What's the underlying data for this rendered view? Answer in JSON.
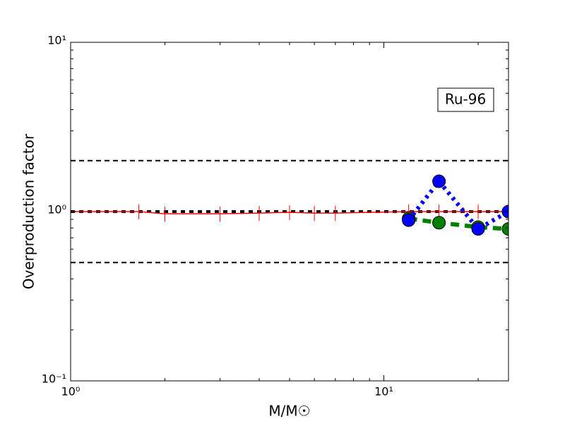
{
  "chart_data": {
    "type": "line",
    "xlabel": "M/M☉",
    "ylabel": "Overproduction factor",
    "annotation": "Ru-96",
    "xscale": "log",
    "yscale": "log",
    "xlim": [
      1,
      25
    ],
    "ylim": [
      0.1,
      10
    ],
    "xticks": [
      {
        "value": 1,
        "label": "10⁰"
      },
      {
        "value": 10,
        "label": "10¹"
      }
    ],
    "yticks": [
      {
        "value": 0.1,
        "label": "10⁻¹"
      },
      {
        "value": 1,
        "label": "10⁰"
      },
      {
        "value": 10,
        "label": "10¹"
      }
    ],
    "xminorticks": [
      2,
      3,
      4,
      5,
      6,
      7,
      8,
      9,
      20
    ],
    "yminorticks": [
      0.2,
      0.3,
      0.4,
      0.5,
      0.6,
      0.7,
      0.8,
      0.9,
      2,
      3,
      4,
      5,
      6,
      7,
      8,
      9
    ],
    "hlines": [
      {
        "value": 2,
        "color": "#000000"
      },
      {
        "value": 1,
        "color": "#000000"
      },
      {
        "value": 0.5,
        "color": "#000000"
      }
    ],
    "series": [
      {
        "color": "#ff0000",
        "style": "solid",
        "marker": "errorbar",
        "x": [
          1,
          1.65,
          2,
          3,
          4,
          5,
          6,
          7,
          12,
          15,
          20,
          25
        ],
        "values": [
          1,
          1,
          0.97,
          0.97,
          0.98,
          0.99,
          0.98,
          0.98,
          1,
          1,
          1,
          1
        ],
        "errors": [
          0.1,
          0.1,
          0.1,
          0.1,
          0.1,
          0.1,
          0.1,
          0.1,
          0.1,
          0.1,
          0.1,
          0.1
        ]
      },
      {
        "color": "#008000",
        "style": "dashed",
        "marker": "circle",
        "x": [
          12,
          15,
          20,
          25
        ],
        "values": [
          0.91,
          0.86,
          0.81,
          0.79
        ]
      },
      {
        "color": "#0000ff",
        "style": "dotted",
        "marker": "circle",
        "x": [
          12,
          15,
          20,
          25
        ],
        "values": [
          0.89,
          1.51,
          0.79,
          1
        ]
      }
    ]
  }
}
